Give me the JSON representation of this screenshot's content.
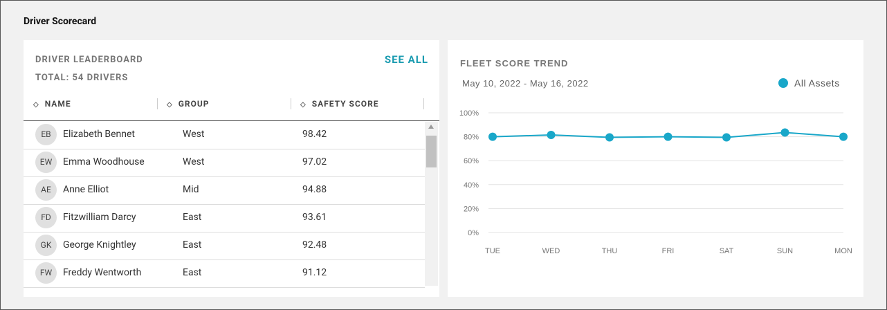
{
  "title": "Driver Scorecard",
  "leaderboard": {
    "title": "DRIVER LEADERBOARD",
    "total": "TOTAL: 54 DRIVERS",
    "see_all": "SEE ALL",
    "columns": [
      "NAME",
      "GROUP",
      "SAFETY SCORE"
    ],
    "rows": [
      {
        "initials": "EB",
        "name": "Elizabeth Bennet",
        "group": "West",
        "score": 98.42
      },
      {
        "initials": "EW",
        "name": "Emma Woodhouse",
        "group": "West",
        "score": 97.02
      },
      {
        "initials": "AE",
        "name": "Anne Elliot",
        "group": "Mid",
        "score": 94.88
      },
      {
        "initials": "FD",
        "name": "Fitzwilliam Darcy",
        "group": "East",
        "score": 93.61
      },
      {
        "initials": "GK",
        "name": "George Knightley",
        "group": "East",
        "score": 92.48
      },
      {
        "initials": "FW",
        "name": "Freddy Wentworth",
        "group": "East",
        "score": 91.12
      }
    ]
  },
  "chart_data": {
    "type": "line",
    "title": "FLEET SCORE TREND",
    "subtitle": "May 10, 2022 - May 16, 2022",
    "categories": [
      "TUE",
      "WED",
      "THU",
      "FRI",
      "SAT",
      "SUN",
      "MON"
    ],
    "series": [
      {
        "name": "All Assets",
        "color": "#19a7c9",
        "values": [
          80,
          81.5,
          79.5,
          80,
          79.5,
          83.5,
          80
        ]
      }
    ],
    "ylim": [
      0,
      100
    ],
    "yticks": [
      {
        "value": 0,
        "label": "0%"
      },
      {
        "value": 20,
        "label": "20%"
      },
      {
        "value": 40,
        "label": "40%"
      },
      {
        "value": 60,
        "label": "60%"
      },
      {
        "value": 80,
        "label": "80%"
      },
      {
        "value": 100,
        "label": "100%"
      }
    ],
    "grid": true,
    "legend": "top-right"
  }
}
